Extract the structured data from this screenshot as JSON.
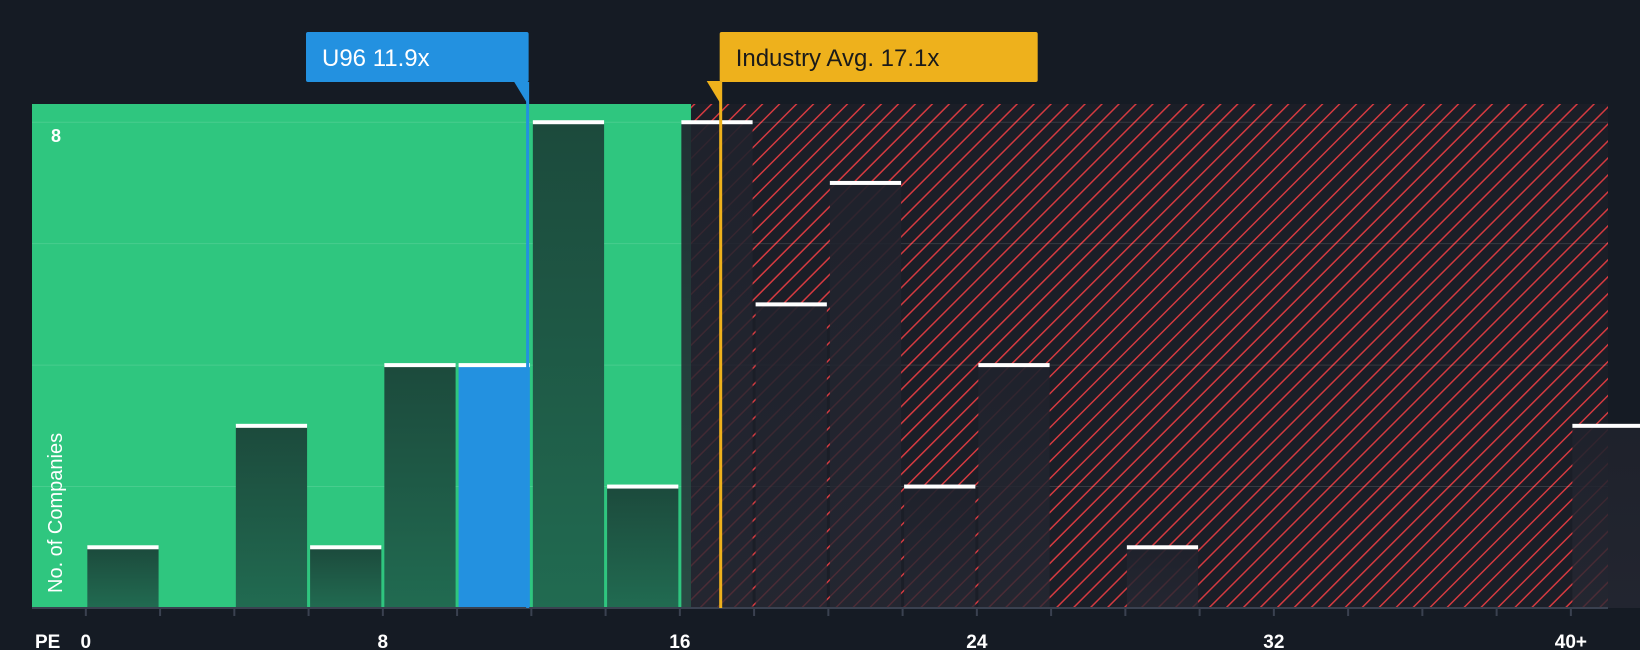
{
  "chart_data": {
    "type": "bar",
    "xlabel": "PE",
    "ylabel": "No. of Companies",
    "x_ticks": [
      {
        "value": 0,
        "label": "0"
      },
      {
        "value": 8,
        "label": "8"
      },
      {
        "value": 16,
        "label": "16"
      },
      {
        "value": 24,
        "label": "24"
      },
      {
        "value": 32,
        "label": "32"
      },
      {
        "value": 40,
        "label": "40+"
      }
    ],
    "y_ticks": [
      {
        "value": 8,
        "label": "8"
      }
    ],
    "xlim": [
      -1.45,
      41.0
    ],
    "ylim": [
      0,
      8.3
    ],
    "bin_width": 2,
    "bars": [
      {
        "start": 0,
        "value": 1,
        "highlight": false
      },
      {
        "start": 4,
        "value": 3,
        "highlight": false
      },
      {
        "start": 6,
        "value": 1,
        "highlight": false
      },
      {
        "start": 8,
        "value": 4,
        "highlight": false
      },
      {
        "start": 10,
        "value": 4,
        "highlight": true
      },
      {
        "start": 12,
        "value": 8,
        "highlight": false
      },
      {
        "start": 14,
        "value": 2,
        "highlight": false
      },
      {
        "start": 16,
        "value": 8,
        "highlight": false
      },
      {
        "start": 18,
        "value": 5,
        "highlight": false
      },
      {
        "start": 20,
        "value": 7,
        "highlight": false
      },
      {
        "start": 22,
        "value": 2,
        "highlight": false
      },
      {
        "start": 24,
        "value": 4,
        "highlight": false
      },
      {
        "start": 28,
        "value": 1,
        "highlight": false
      },
      {
        "start": 40,
        "value": 3,
        "highlight": false
      }
    ],
    "company_marker": {
      "label": "U96 11.9x",
      "value": 11.9,
      "color": "#2391e0"
    },
    "industry_marker": {
      "label": "Industry Avg. 17.1x",
      "value": 17.1,
      "color": "#eeb11c"
    },
    "fair_zone_end": 16.3,
    "grid": true,
    "colors": {
      "background": "#151b24",
      "fair_zone": "#2fc67f",
      "bar_fair": "#1f5a46",
      "bar_over": "#22252f",
      "bar_highlight": "#2391e0",
      "bar_cap": "#ffffff",
      "hatch_red": "#d43a40",
      "axis_text": "#ffffff"
    }
  }
}
